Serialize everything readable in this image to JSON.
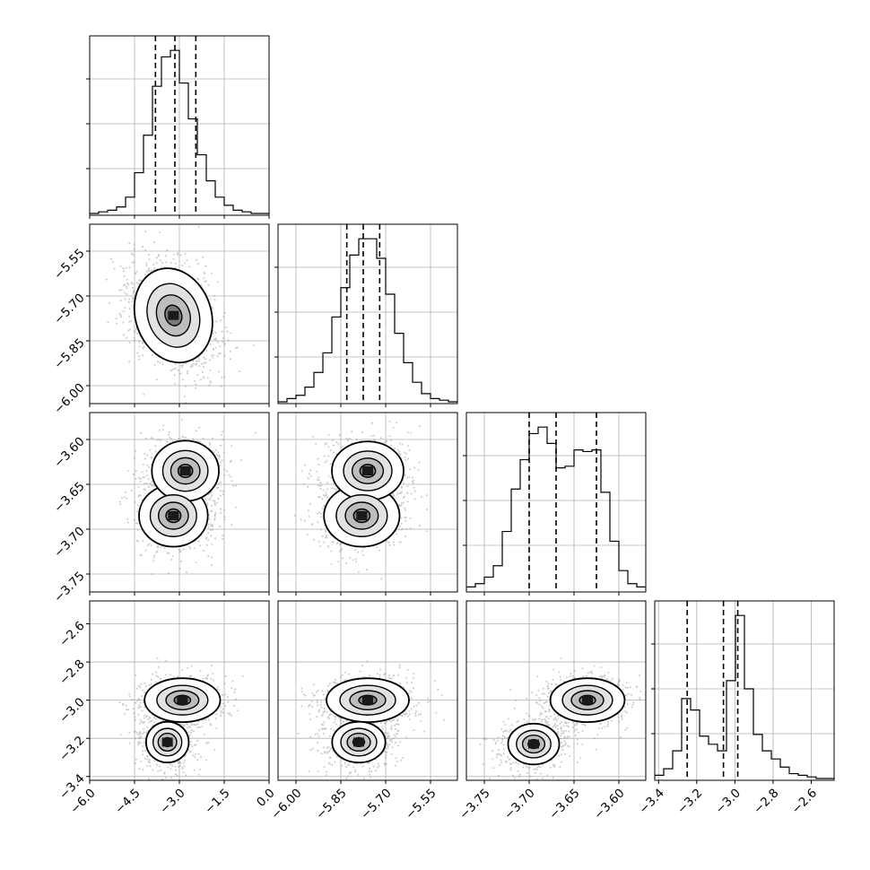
{
  "chart_data": {
    "type": "corner",
    "grid": true,
    "n_params": 4,
    "params": [
      {
        "range": [
          -6.0,
          0.0
        ],
        "ticks": [
          "−6.0",
          "−4.5",
          "−3.0",
          "−1.5",
          "0.0"
        ],
        "tick_values": [
          -6.0,
          -4.5,
          -3.0,
          -1.5,
          0.0
        ]
      },
      {
        "range": [
          -6.06,
          -5.46
        ],
        "ticks": [
          "−6.00",
          "−5.85",
          "−5.70",
          "−5.55"
        ],
        "tick_values": [
          -6.0,
          -5.85,
          -5.7,
          -5.55
        ]
      },
      {
        "range": [
          -3.77,
          -3.57
        ],
        "ticks": [
          "−3.75",
          "−3.70",
          "−3.65",
          "−3.60"
        ],
        "tick_values": [
          -3.75,
          -3.7,
          -3.65,
          -3.6
        ]
      },
      {
        "range": [
          -3.42,
          -2.48
        ],
        "ticks": [
          "−3.4",
          "−3.2",
          "−3.0",
          "−2.8",
          "−2.6"
        ],
        "tick_values": [
          -3.4,
          -3.2,
          -3.0,
          -2.8,
          -2.6
        ]
      }
    ],
    "quantiles": [
      [
        -3.8,
        -3.15,
        -2.45
      ],
      [
        -5.83,
        -5.775,
        -5.72
      ],
      [
        -3.7,
        -3.67,
        -3.625
      ],
      [
        -3.25,
        -3.06,
        -2.985
      ]
    ],
    "histograms": [
      {
        "bins": [
          -6.0,
          -5.7,
          -5.4,
          -5.1,
          -4.8,
          -4.5,
          -4.2,
          -3.9,
          -3.6,
          -3.3,
          -3.0,
          -2.7,
          -2.4,
          -2.1,
          -1.8,
          -1.5,
          -1.2,
          -0.9,
          -0.6,
          -0.3,
          0.0
        ],
        "counts": [
          0,
          1,
          2,
          4,
          10,
          25,
          48,
          78,
          96,
          100,
          80,
          58,
          36,
          20,
          10,
          5,
          2,
          1,
          0,
          0
        ]
      },
      {
        "bins": [
          -6.06,
          -6.03,
          -6.0,
          -5.97,
          -5.94,
          -5.91,
          -5.88,
          -5.85,
          -5.82,
          -5.79,
          -5.76,
          -5.73,
          -5.7,
          -5.67,
          -5.64,
          -5.61,
          -5.58,
          -5.55,
          -5.52,
          -5.49,
          -5.46
        ],
        "counts": [
          0,
          2,
          4,
          9,
          18,
          30,
          52,
          70,
          90,
          100,
          100,
          88,
          66,
          42,
          24,
          12,
          5,
          2,
          1,
          0
        ]
      },
      {
        "bins": [
          -3.77,
          -3.76,
          -3.75,
          -3.74,
          -3.73,
          -3.72,
          -3.71,
          -3.7,
          -3.69,
          -3.68,
          -3.67,
          -3.66,
          -3.65,
          -3.64,
          -3.63,
          -3.62,
          -3.61,
          -3.6,
          -3.59,
          -3.58,
          -3.57
        ],
        "counts": [
          2,
          4,
          8,
          15,
          36,
          62,
          80,
          96,
          100,
          90,
          75,
          76,
          86,
          85,
          86,
          60,
          30,
          12,
          4,
          2
        ]
      },
      {
        "bins": [
          -3.42,
          -3.373,
          -3.326,
          -3.279,
          -3.232,
          -3.185,
          -3.138,
          -3.091,
          -3.044,
          -2.997,
          -2.95,
          -2.903,
          -2.856,
          -2.809,
          -2.762,
          -2.715,
          -2.668,
          -2.621,
          -2.574,
          -2.527,
          -2.48
        ],
        "counts": [
          2,
          6,
          17,
          49,
          42,
          26,
          21,
          17,
          60,
          100,
          55,
          27,
          17,
          12,
          7,
          3,
          2,
          1,
          0,
          0
        ]
      }
    ],
    "density_modes": {
      "0-1": [
        {
          "x": -3.2,
          "y": -5.765,
          "sx": 0.55,
          "sy": 0.07,
          "w": 1.0,
          "rho": -0.35
        }
      ],
      "0-2": [
        {
          "x": -3.2,
          "y": -3.685,
          "sx": 0.5,
          "sy": 0.015,
          "w": 1.0,
          "rho": 0.0
        },
        {
          "x": -2.8,
          "y": -3.635,
          "sx": 0.5,
          "sy": 0.015,
          "w": 0.95,
          "rho": 0.0
        }
      ],
      "1-2": [
        {
          "x": -5.78,
          "y": -3.685,
          "sx": 0.055,
          "sy": 0.015,
          "w": 1.0,
          "rho": 0.0
        },
        {
          "x": -5.76,
          "y": -3.635,
          "sx": 0.055,
          "sy": 0.015,
          "w": 0.9,
          "rho": 0.0
        }
      ],
      "0-3": [
        {
          "x": -2.9,
          "y": -3.0,
          "sx": 0.55,
          "sy": 0.05,
          "w": 1.0,
          "rho": 0.0
        },
        {
          "x": -3.4,
          "y": -3.22,
          "sx": 0.4,
          "sy": 0.06,
          "w": 0.6,
          "rho": 0.0
        }
      ],
      "1-3": [
        {
          "x": -5.76,
          "y": -3.0,
          "sx": 0.06,
          "sy": 0.05,
          "w": 1.0,
          "rho": 0.0
        },
        {
          "x": -5.79,
          "y": -3.22,
          "sx": 0.05,
          "sy": 0.06,
          "w": 0.6,
          "rho": 0.0
        }
      ],
      "2-3": [
        {
          "x": -3.635,
          "y": -3.0,
          "sx": 0.018,
          "sy": 0.05,
          "w": 1.0,
          "rho": 0.0
        },
        {
          "x": -3.695,
          "y": -3.23,
          "sx": 0.016,
          "sy": 0.06,
          "w": 0.6,
          "rho": 0.0
        }
      ]
    },
    "colors": {
      "hist": "#000000",
      "contour": "#000000",
      "scatter": "#888888",
      "grid": "#b0b0b0"
    }
  }
}
